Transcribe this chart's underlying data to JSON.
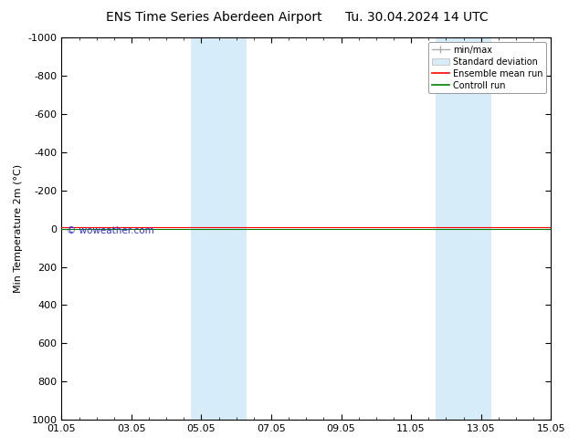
{
  "title1": "ENS Time Series Aberdeen Airport",
  "title2": "Tu. 30.04.2024 14 UTC",
  "ylabel": "Min Temperature 2m (°C)",
  "ylim_bottom": 1000,
  "ylim_top": -1000,
  "yticks": [
    -1000,
    -800,
    -600,
    -400,
    -200,
    0,
    200,
    400,
    600,
    800,
    1000
  ],
  "xtick_labels": [
    "01.05",
    "03.05",
    "05.05",
    "07.05",
    "09.05",
    "11.05",
    "13.05",
    "15.05"
  ],
  "xtick_positions": [
    0,
    2,
    4,
    6,
    8,
    10,
    12,
    14
  ],
  "shaded_bands": [
    {
      "x_start": 3.7,
      "x_end": 5.3
    },
    {
      "x_start": 10.7,
      "x_end": 12.3
    }
  ],
  "shade_color": "#d6ecf8",
  "shade_alpha": 1.0,
  "control_run_y": 0.0,
  "control_run_color": "#008000",
  "ensemble_mean_color": "#ff0000",
  "minmax_color": "#aaaaaa",
  "stddev_color": "#cccccc",
  "legend_labels": [
    "min/max",
    "Standard deviation",
    "Ensemble mean run",
    "Controll run"
  ],
  "legend_colors": [
    "#aaaaaa",
    "#cccccc",
    "#ff0000",
    "#008000"
  ],
  "watermark": "© woweather.com",
  "watermark_color": "#3333cc",
  "background_color": "#ffffff",
  "plot_bg_color": "#ffffff",
  "title_fontsize": 10,
  "axis_fontsize": 8,
  "tick_fontsize": 8
}
